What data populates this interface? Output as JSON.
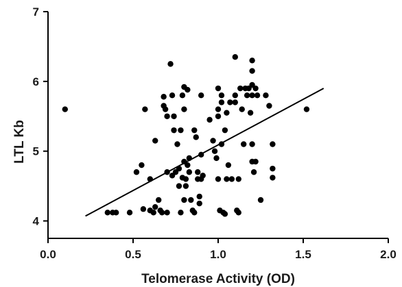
{
  "chart_data": {
    "type": "scatter",
    "title": "",
    "xlabel": "Telomerase Activity (OD)",
    "ylabel": "LTL Kb",
    "xlim": [
      0.0,
      2.0
    ],
    "ylim": [
      3.75,
      7.0
    ],
    "x_ticks": [
      {
        "value": 0.0,
        "label": "0.0"
      },
      {
        "value": 0.5,
        "label": "0.5"
      },
      {
        "value": 1.0,
        "label": "1.0"
      },
      {
        "value": 1.5,
        "label": "1.5"
      },
      {
        "value": 2.0,
        "label": "2.0"
      }
    ],
    "y_ticks": [
      {
        "value": 4,
        "label": "4"
      },
      {
        "value": 5,
        "label": "5"
      },
      {
        "value": 6,
        "label": "6"
      },
      {
        "value": 7,
        "label": "7"
      }
    ],
    "grid": false,
    "legend": "none",
    "trendline": {
      "x": [
        0.22,
        1.62
      ],
      "y": [
        4.07,
        5.9
      ]
    },
    "series": [
      {
        "color": "#000000",
        "points": [
          [
            0.1,
            5.6
          ],
          [
            0.35,
            4.12
          ],
          [
            0.38,
            4.12
          ],
          [
            0.4,
            4.12
          ],
          [
            0.48,
            4.12
          ],
          [
            0.52,
            4.7
          ],
          [
            0.55,
            4.8
          ],
          [
            0.56,
            4.17
          ],
          [
            0.57,
            5.6
          ],
          [
            0.6,
            4.6
          ],
          [
            0.6,
            4.15
          ],
          [
            0.62,
            4.12
          ],
          [
            0.63,
            5.15
          ],
          [
            0.63,
            4.2
          ],
          [
            0.65,
            4.3
          ],
          [
            0.66,
            4.15
          ],
          [
            0.67,
            4.12
          ],
          [
            0.68,
            5.78
          ],
          [
            0.68,
            5.65
          ],
          [
            0.69,
            5.6
          ],
          [
            0.7,
            5.5
          ],
          [
            0.7,
            4.7
          ],
          [
            0.7,
            4.12
          ],
          [
            0.72,
            6.25
          ],
          [
            0.73,
            5.8
          ],
          [
            0.73,
            4.65
          ],
          [
            0.74,
            5.5
          ],
          [
            0.74,
            5.3
          ],
          [
            0.75,
            4.7
          ],
          [
            0.76,
            5.1
          ],
          [
            0.77,
            4.75
          ],
          [
            0.77,
            4.5
          ],
          [
            0.78,
            5.3
          ],
          [
            0.78,
            4.12
          ],
          [
            0.79,
            4.62
          ],
          [
            0.79,
            5.8
          ],
          [
            0.8,
            5.92
          ],
          [
            0.8,
            5.6
          ],
          [
            0.8,
            4.85
          ],
          [
            0.8,
            4.3
          ],
          [
            0.81,
            4.6
          ],
          [
            0.81,
            4.5
          ],
          [
            0.82,
            5.88
          ],
          [
            0.82,
            4.8
          ],
          [
            0.83,
            4.9
          ],
          [
            0.83,
            4.7
          ],
          [
            0.84,
            4.3
          ],
          [
            0.85,
            4.15
          ],
          [
            0.86,
            4.12
          ],
          [
            0.86,
            5.3
          ],
          [
            0.87,
            5.2
          ],
          [
            0.88,
            4.7
          ],
          [
            0.88,
            4.6
          ],
          [
            0.89,
            4.35
          ],
          [
            0.89,
            4.25
          ],
          [
            0.9,
            5.8
          ],
          [
            0.9,
            4.95
          ],
          [
            0.9,
            4.6
          ],
          [
            0.91,
            4.65
          ],
          [
            0.95,
            5.45
          ],
          [
            0.97,
            5.15
          ],
          [
            0.98,
            5.0
          ],
          [
            0.99,
            4.9
          ],
          [
            1.0,
            5.9
          ],
          [
            1.0,
            5.6
          ],
          [
            1.0,
            5.5
          ],
          [
            1.0,
            4.6
          ],
          [
            1.01,
            4.15
          ],
          [
            1.02,
            5.8
          ],
          [
            1.02,
            5.7
          ],
          [
            1.02,
            5.1
          ],
          [
            1.03,
            4.12
          ],
          [
            1.04,
            4.1
          ],
          [
            1.04,
            5.3
          ],
          [
            1.05,
            5.55
          ],
          [
            1.05,
            4.6
          ],
          [
            1.06,
            4.8
          ],
          [
            1.07,
            5.7
          ],
          [
            1.08,
            4.6
          ],
          [
            1.1,
            6.35
          ],
          [
            1.1,
            5.8
          ],
          [
            1.1,
            5.7
          ],
          [
            1.11,
            4.15
          ],
          [
            1.12,
            4.12
          ],
          [
            1.12,
            4.6
          ],
          [
            1.13,
            5.9
          ],
          [
            1.14,
            5.6
          ],
          [
            1.15,
            5.1
          ],
          [
            1.16,
            5.9
          ],
          [
            1.17,
            5.8
          ],
          [
            1.18,
            5.9
          ],
          [
            1.19,
            5.55
          ],
          [
            1.2,
            6.3
          ],
          [
            1.2,
            6.15
          ],
          [
            1.2,
            5.95
          ],
          [
            1.2,
            5.8
          ],
          [
            1.2,
            5.1
          ],
          [
            1.2,
            4.85
          ],
          [
            1.21,
            4.7
          ],
          [
            1.22,
            5.9
          ],
          [
            1.22,
            4.85
          ],
          [
            1.23,
            5.8
          ],
          [
            1.25,
            4.3
          ],
          [
            1.28,
            5.8
          ],
          [
            1.3,
            5.65
          ],
          [
            1.32,
            5.1
          ],
          [
            1.32,
            4.75
          ],
          [
            1.32,
            4.62
          ],
          [
            1.52,
            5.6
          ]
        ]
      }
    ]
  }
}
